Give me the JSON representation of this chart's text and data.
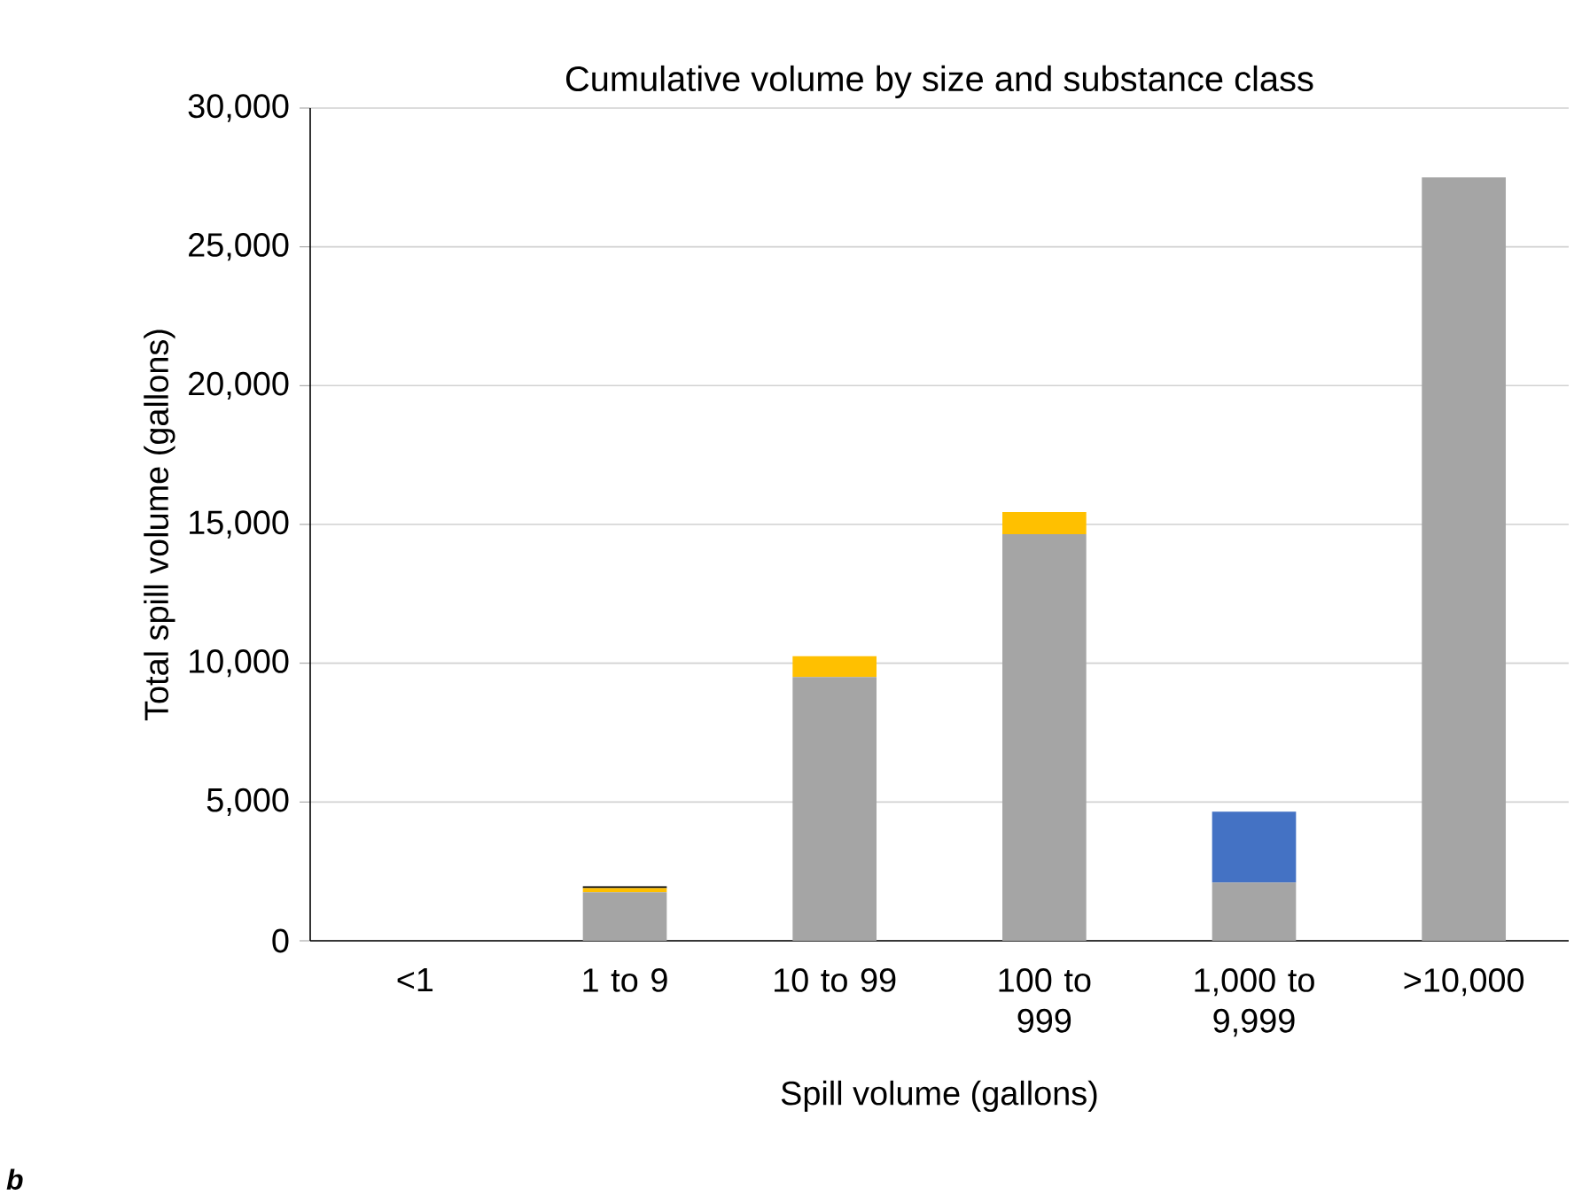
{
  "chart_data": {
    "type": "bar",
    "title": "Cumulative volume by size and substance class",
    "xlabel": "Spill volume (gallons)",
    "ylabel": "Total spill volume (gallons)",
    "categories": [
      "<1",
      "1 to 9",
      "10 to 99",
      "100 to 999",
      "1,000 to 9,999",
      ">10,000"
    ],
    "stacked": true,
    "grid": "y",
    "series": [
      {
        "color": "#a5a5a5",
        "values": [
          0,
          1750,
          9500,
          14650,
          2100,
          27500
        ]
      },
      {
        "color": "#ffc000",
        "values": [
          0,
          150,
          750,
          800,
          0,
          0
        ]
      },
      {
        "color": "#4472c4",
        "values": [
          0,
          0,
          0,
          0,
          2550,
          0
        ]
      },
      {
        "color": "#000000",
        "values": [
          0,
          60,
          0,
          0,
          0,
          0
        ]
      }
    ],
    "ylim": [
      0,
      30000
    ],
    "yticks": [
      0,
      {
        "value": 5000,
        "label": "5,000"
      },
      {
        "value": 10000,
        "label": "10,000"
      },
      {
        "value": 15000,
        "label": "15,000"
      },
      {
        "value": 20000,
        "label": "20,000"
      },
      {
        "value": 25000,
        "label": "25,000"
      },
      {
        "value": 30000,
        "label": "30,000"
      }
    ],
    "annotations": [
      "b"
    ]
  }
}
